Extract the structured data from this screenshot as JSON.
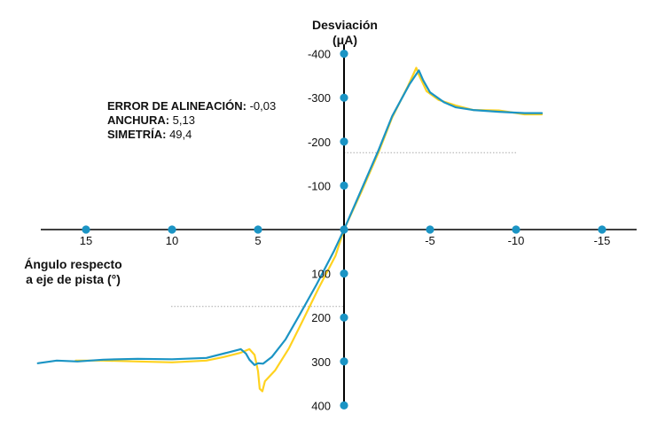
{
  "stats": {
    "error_label": "ERROR DE ALINEACIÓN:",
    "error_value": "-0,03",
    "width_label": "ANCHURA:",
    "width_value": "5,13",
    "symmetry_label": "SIMETRÍA:",
    "symmetry_value": "49,4"
  },
  "chart_data": {
    "type": "line",
    "ylabel_line1": "Desviación",
    "ylabel_line2": "(μA)",
    "xlabel_line1": "Ángulo respecto",
    "xlabel_line2": "a eje de pista (°)",
    "xlim": [
      18,
      -17
    ],
    "ylim": [
      -400,
      400
    ],
    "x_ticks": [
      15,
      10,
      5,
      -5,
      -10,
      -15
    ],
    "x_tick_labels": [
      "15",
      "10",
      "5",
      "-5",
      "-10",
      "-15"
    ],
    "y_ticks": [
      -400,
      -300,
      -200,
      -100,
      100,
      200,
      300,
      400
    ],
    "y_tick_labels": [
      "-400",
      "-300",
      "-200",
      "-100",
      "100",
      "200",
      "300",
      "400"
    ],
    "reference_levels": [
      -175,
      175
    ],
    "series": [
      {
        "color": "#ffd21f",
        "points": [
          [
            15.6,
            298
          ],
          [
            14,
            298
          ],
          [
            12,
            300
          ],
          [
            10,
            302
          ],
          [
            8,
            298
          ],
          [
            7,
            290
          ],
          [
            6,
            280
          ],
          [
            5.5,
            272
          ],
          [
            5.2,
            285
          ],
          [
            5,
            322
          ],
          [
            4.9,
            362
          ],
          [
            4.75,
            368
          ],
          [
            4.6,
            345
          ],
          [
            4,
            320
          ],
          [
            3.2,
            270
          ],
          [
            2.5,
            215
          ],
          [
            1.5,
            135
          ],
          [
            0.5,
            60
          ],
          [
            0,
            0
          ],
          [
            -1,
            -85
          ],
          [
            -2,
            -175
          ],
          [
            -2.8,
            -255
          ],
          [
            -3.7,
            -325
          ],
          [
            -4.2,
            -368
          ],
          [
            -4.35,
            -352
          ],
          [
            -4.8,
            -315
          ],
          [
            -5.5,
            -295
          ],
          [
            -6.5,
            -282
          ],
          [
            -7.5,
            -272
          ],
          [
            -9,
            -271
          ],
          [
            -10.5,
            -262
          ],
          [
            -11.5,
            -262
          ]
        ]
      },
      {
        "color": "#1b94c4",
        "points": [
          [
            17.8,
            304
          ],
          [
            16.7,
            298
          ],
          [
            15.5,
            300
          ],
          [
            14,
            296
          ],
          [
            12,
            294
          ],
          [
            10,
            295
          ],
          [
            8,
            292
          ],
          [
            6.8,
            280
          ],
          [
            6,
            272
          ],
          [
            5.7,
            282
          ],
          [
            5.5,
            296
          ],
          [
            5.2,
            308
          ],
          [
            5,
            304
          ],
          [
            4.7,
            305
          ],
          [
            4.2,
            290
          ],
          [
            3.4,
            250
          ],
          [
            2.6,
            195
          ],
          [
            1.6,
            125
          ],
          [
            0.6,
            50
          ],
          [
            0,
            0
          ],
          [
            -1,
            -90
          ],
          [
            -2,
            -180
          ],
          [
            -2.8,
            -258
          ],
          [
            -3.8,
            -330
          ],
          [
            -4.35,
            -362
          ],
          [
            -4.6,
            -340
          ],
          [
            -5,
            -312
          ],
          [
            -5.8,
            -290
          ],
          [
            -6.5,
            -278
          ],
          [
            -7.5,
            -272
          ],
          [
            -9,
            -268
          ],
          [
            -10.5,
            -265
          ],
          [
            -11.5,
            -265
          ]
        ]
      }
    ]
  },
  "colors": {
    "axis": "#000000",
    "marker": "#1b94c4",
    "reference": "#aaaaaa"
  }
}
